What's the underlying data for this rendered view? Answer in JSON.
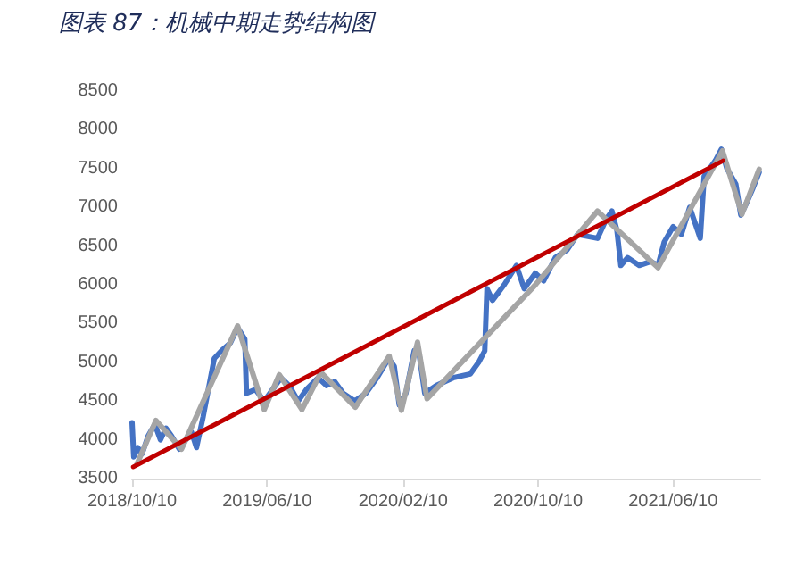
{
  "chart_data": {
    "type": "line",
    "title": "图表 87：机械中期走势结构图",
    "xlim": [
      "2018-10-10",
      "2021-11-14"
    ],
    "xticks": [
      {
        "value": "2018-10-10",
        "label": "2018/10/10"
      },
      {
        "value": "2019-06-10",
        "label": "2019/06/10"
      },
      {
        "value": "2020-02-10",
        "label": "2020/02/10"
      },
      {
        "value": "2020-10-10",
        "label": "2020/10/10"
      },
      {
        "value": "2021-06-10",
        "label": "2021/06/10"
      }
    ],
    "ylim": [
      3500,
      8500
    ],
    "yticks": [
      3500,
      4000,
      4500,
      5000,
      5500,
      6000,
      6500,
      7000,
      7500,
      8000,
      8500
    ],
    "grid": false,
    "marker": "none",
    "line_style": "solid",
    "series": [
      {
        "color": "#4472c4",
        "x": [
          "2018-10-10",
          "2018-10-13",
          "2018-10-20",
          "2018-10-28",
          "2018-11-08",
          "2018-11-20",
          "2018-11-30",
          "2018-12-10",
          "2018-12-20",
          "2019-01-03",
          "2019-01-15",
          "2019-01-25",
          "2019-02-03",
          "2019-02-15",
          "2019-03-07",
          "2019-03-20",
          "2019-04-05",
          "2019-04-18",
          "2019-05-01",
          "2019-05-04",
          "2019-05-20",
          "2019-06-05",
          "2019-06-20",
          "2019-07-05",
          "2019-07-20",
          "2019-08-05",
          "2019-08-20",
          "2019-09-10",
          "2019-09-25",
          "2019-10-10",
          "2019-10-25",
          "2019-11-15",
          "2019-12-05",
          "2019-12-25",
          "2020-01-15",
          "2020-01-25",
          "2020-02-03",
          "2020-02-15",
          "2020-03-01",
          "2020-03-10",
          "2020-03-20",
          "2020-04-10",
          "2020-05-10",
          "2020-06-10",
          "2020-06-25",
          "2020-07-06",
          "2020-07-10",
          "2020-07-20",
          "2020-08-10",
          "2020-09-01",
          "2020-09-15",
          "2020-10-05",
          "2020-10-20",
          "2020-11-10",
          "2020-12-01",
          "2020-12-20",
          "2021-01-25",
          "2021-02-10",
          "2021-02-20",
          "2021-03-01",
          "2021-03-08",
          "2021-03-20",
          "2021-04-10",
          "2021-05-01",
          "2021-05-14",
          "2021-05-25",
          "2021-06-10",
          "2021-06-25",
          "2021-07-10",
          "2021-07-29",
          "2021-08-05",
          "2021-08-25",
          "2021-09-05",
          "2021-09-15",
          "2021-10-01",
          "2021-10-10",
          "2021-10-20",
          "2021-11-01",
          "2021-11-12"
        ],
        "values": [
          4220,
          3780,
          3900,
          3820,
          4050,
          4200,
          4000,
          4150,
          4050,
          3880,
          4000,
          4100,
          3900,
          4300,
          5050,
          5150,
          5250,
          5450,
          5300,
          4600,
          4650,
          4500,
          4650,
          4800,
          4700,
          4500,
          4650,
          4800,
          4700,
          4750,
          4600,
          4500,
          4600,
          4800,
          5050,
          4950,
          4450,
          4600,
          5150,
          5100,
          4600,
          4700,
          4800,
          4850,
          5000,
          5150,
          5950,
          5800,
          6000,
          6250,
          5950,
          6150,
          6050,
          6350,
          6450,
          6650,
          6600,
          6850,
          6950,
          6700,
          6250,
          6350,
          6250,
          6300,
          6250,
          6550,
          6750,
          6650,
          7000,
          6600,
          7400,
          7600,
          7750,
          7500,
          7300,
          6900,
          7050,
          7250,
          7450
        ]
      },
      {
        "color": "#a5a5a5",
        "x": [
          "2018-10-19",
          "2018-11-22",
          "2019-01-07",
          "2019-04-18",
          "2019-06-05",
          "2019-07-02",
          "2019-08-12",
          "2019-09-15",
          "2019-11-16",
          "2020-01-16",
          "2020-02-07",
          "2020-03-07",
          "2020-03-24",
          "2020-10-04",
          "2021-01-25",
          "2021-05-14",
          "2021-09-07",
          "2021-10-12",
          "2021-11-12"
        ],
        "values": [
          3690,
          4250,
          3880,
          5470,
          4390,
          4840,
          4390,
          4870,
          4420,
          5080,
          4380,
          5260,
          4530,
          5990,
          6950,
          6220,
          7730,
          6910,
          7490
        ]
      },
      {
        "color": "#c00000",
        "x": [
          "2018-10-12",
          "2021-09-08"
        ],
        "values": [
          3650,
          7600
        ]
      }
    ]
  }
}
